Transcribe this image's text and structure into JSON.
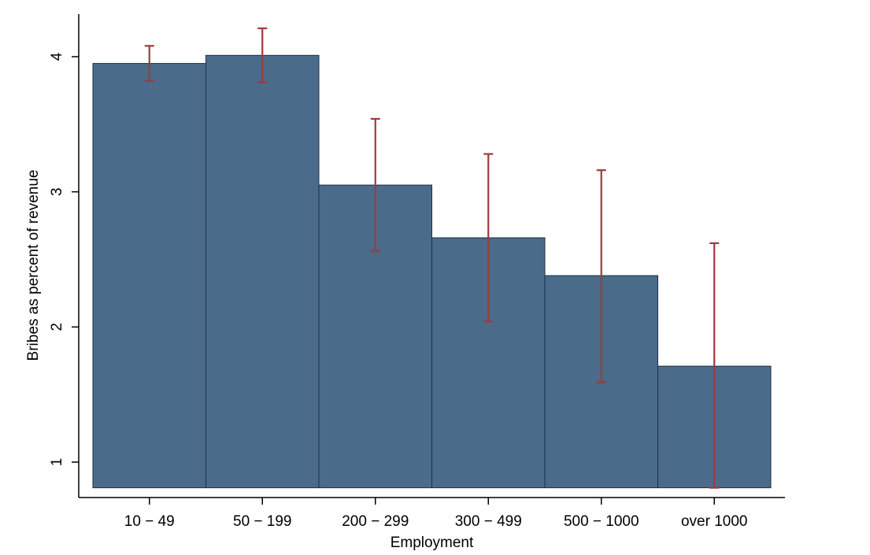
{
  "chart_data": {
    "type": "bar",
    "title": "",
    "xlabel": "Employment",
    "ylabel": "Bribes as percent of revenue",
    "categories": [
      "10 − 49",
      "50 − 199",
      "200 − 299",
      "300 − 499",
      "500 − 1000",
      "over 1000"
    ],
    "values": [
      3.95,
      4.01,
      3.05,
      2.66,
      2.38,
      1.71
    ],
    "error_low": [
      3.82,
      3.81,
      2.56,
      2.04,
      1.59,
      0.81
    ],
    "error_high": [
      4.08,
      4.21,
      3.54,
      3.28,
      3.16,
      2.62
    ],
    "y_ticks": [
      1,
      2,
      3,
      4
    ],
    "ylim": [
      0.75,
      4.35
    ],
    "bar_base": 0.81,
    "grid": false,
    "legend": "none",
    "colors": {
      "bar_fill": "#4a6b8a",
      "bar_edge": "#1c3047",
      "error_bar": "#9e3a3f",
      "axis": "#000000"
    }
  }
}
